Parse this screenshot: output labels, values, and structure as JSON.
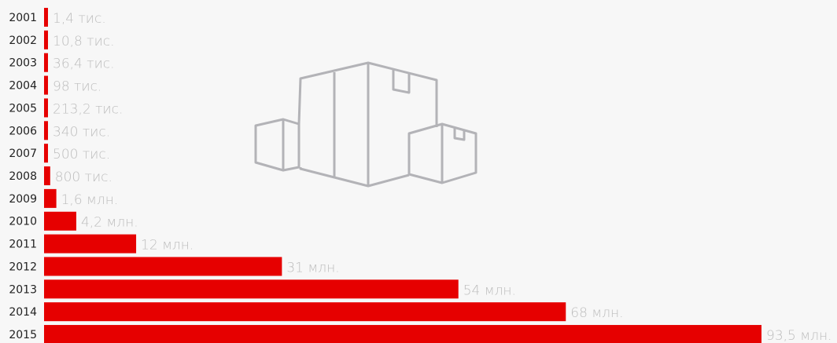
{
  "chart_data": {
    "type": "bar",
    "orientation": "horizontal",
    "color": "#e60000",
    "categories": [
      "2001",
      "2002",
      "2003",
      "2004",
      "2005",
      "2006",
      "2007",
      "2008",
      "2009",
      "2010",
      "2011",
      "2012",
      "2013",
      "2014",
      "2015"
    ],
    "values": [
      1400,
      10800,
      36400,
      98000,
      213200,
      340000,
      500000,
      800000,
      1600000,
      4200000,
      12000000,
      31000000,
      54000000,
      68000000,
      93500000
    ],
    "value_labels": [
      "1,4 тис.",
      "10,8 тис.",
      "36,4 тис.",
      "98 тис.",
      "213,2 тис.",
      "340 тис.",
      "500 тис.",
      "800 тис.",
      "1,6 млн.",
      "4,2 млн.",
      "12 млн.",
      "31 млн.",
      "54 млн.",
      "68 млн.",
      "93,5 млн."
    ],
    "xlim": [
      0,
      93500000
    ]
  }
}
